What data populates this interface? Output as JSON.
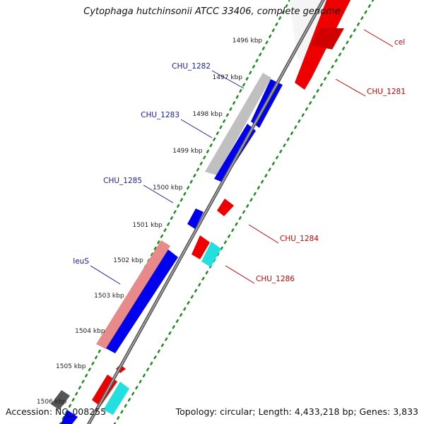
{
  "title": "Cytophaga hutchinsonii ATCC 33406, complete genome",
  "accession": "Accession: NC_008255",
  "topology": "Topology: circular; Length: 4,433,218 bp; Genes: 3,833",
  "colors": {
    "forward_gene": "#0000ee",
    "reverse_gene": "#ee0000",
    "forward_label": "#1a1aa8",
    "reverse_label": "#cc0000",
    "tick": "#1a8a1a",
    "backbone": "#7a7a7a",
    "cds_grey": "#c0c0c0",
    "cds_pink": "#e88a8a",
    "rna_cyan": "#22e0e0"
  },
  "scale_ticks": [
    {
      "label": "1496 kbp",
      "kbp": 1496
    },
    {
      "label": "1497 kbp",
      "kbp": 1497
    },
    {
      "label": "1498 kbp",
      "kbp": 1498
    },
    {
      "label": "1499 kbp",
      "kbp": 1499
    },
    {
      "label": "1500 kbp",
      "kbp": 1500
    },
    {
      "label": "1501 kbp",
      "kbp": 1501
    },
    {
      "label": "1502 kbp",
      "kbp": 1502
    },
    {
      "label": "1503 kbp",
      "kbp": 1503
    },
    {
      "label": "1504 kbp",
      "kbp": 1504
    },
    {
      "label": "1505 kbp",
      "kbp": 1505
    },
    {
      "label": "1506 kbp",
      "kbp": 1506
    }
  ],
  "genes": [
    {
      "name": "cel",
      "strand": "reverse"
    },
    {
      "name": "CHU_1281",
      "strand": "reverse"
    },
    {
      "name": "CHU_1282",
      "strand": "forward"
    },
    {
      "name": "CHU_1283",
      "strand": "forward"
    },
    {
      "name": "CHU_1284",
      "strand": "reverse"
    },
    {
      "name": "CHU_1285",
      "strand": "forward"
    },
    {
      "name": "CHU_1286",
      "strand": "reverse"
    },
    {
      "name": "leuS",
      "strand": "forward"
    }
  ]
}
